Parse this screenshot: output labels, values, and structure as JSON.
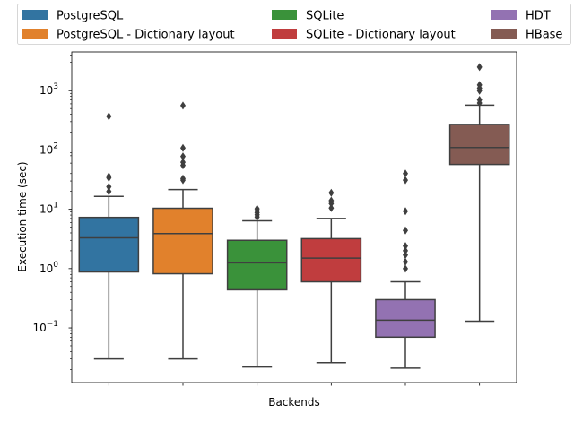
{
  "chart_data": {
    "type": "box",
    "xlabel": "Backends",
    "ylabel": "Execution time (sec)",
    "yscale": "log",
    "ylim": [
      0.012,
      4500
    ],
    "y_ticks": [
      0.1,
      1,
      10,
      100,
      1000
    ],
    "y_tick_labels": [
      {
        "base": "10",
        "exp": "−1"
      },
      {
        "base": "10",
        "exp": "0"
      },
      {
        "base": "10",
        "exp": "1"
      },
      {
        "base": "10",
        "exp": "2"
      },
      {
        "base": "10",
        "exp": "3"
      }
    ],
    "grid": false,
    "legend": {
      "placement": "top",
      "entries": [
        "PostgreSQL",
        "SQLite",
        "HDT",
        "PostgreSQL - Dictionary layout",
        "SQLite - Dictionary layout",
        "HBase"
      ]
    },
    "series": [
      {
        "name": "PostgreSQL",
        "color": "#3274a1",
        "whisker_low": 0.03,
        "q1": 0.88,
        "median": 3.3,
        "q3": 7.3,
        "whisker_high": 16.5,
        "outliers": [
          20,
          24,
          34,
          36,
          370
        ]
      },
      {
        "name": "PostgreSQL - Dictionary layout",
        "color": "#e1812c",
        "whisker_low": 0.03,
        "q1": 0.82,
        "median": 3.9,
        "q3": 10.4,
        "whisker_high": 21.5,
        "outliers": [
          31,
          33,
          55,
          62,
          78,
          108,
          560
        ]
      },
      {
        "name": "SQLite",
        "color": "#3a923a",
        "whisker_low": 0.022,
        "q1": 0.44,
        "median": 1.25,
        "q3": 3.0,
        "whisker_high": 6.4,
        "outliers": [
          7.4,
          8.1,
          8.8,
          9.4,
          10.2
        ]
      },
      {
        "name": "SQLite - Dictionary layout",
        "color": "#c03d3e",
        "whisker_low": 0.026,
        "q1": 0.6,
        "median": 1.5,
        "q3": 3.2,
        "whisker_high": 7.0,
        "outliers": [
          10.5,
          12.5,
          14,
          19
        ]
      },
      {
        "name": "HDT",
        "color": "#9372b2",
        "whisker_low": 0.021,
        "q1": 0.07,
        "median": 0.135,
        "q3": 0.3,
        "whisker_high": 0.6,
        "outliers": [
          1.0,
          1.3,
          1.7,
          2.0,
          2.4,
          4.4,
          9.3,
          31,
          40
        ]
      },
      {
        "name": "HBase",
        "color": "#845b53",
        "whisker_low": 0.13,
        "q1": 57,
        "median": 110,
        "q3": 270,
        "whisker_high": 570,
        "outliers": [
          620,
          700,
          1000,
          1100,
          1250,
          2500
        ]
      }
    ]
  }
}
